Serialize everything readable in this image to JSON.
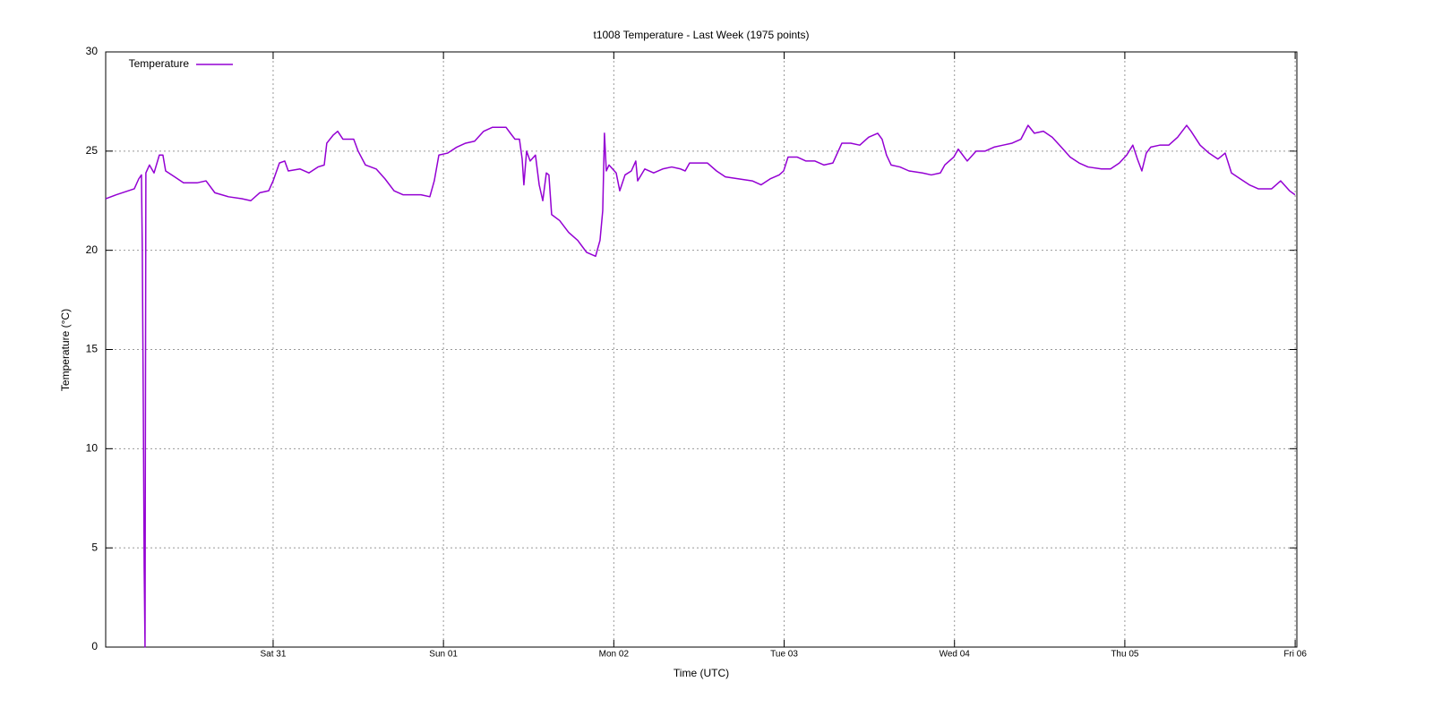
{
  "chart_data": {
    "type": "line",
    "title": "t1008 Temperature - Last Week (1975 points)",
    "xlabel": "Time (UTC)",
    "ylabel": "Temperature (°C)",
    "legend": "top-left",
    "grid": true,
    "xlim": [
      -0.983,
      6.01
    ],
    "ylim": [
      0,
      30
    ],
    "xticks": [
      {
        "value": 0,
        "label": "Sat 31"
      },
      {
        "value": 1,
        "label": "Sun 01"
      },
      {
        "value": 2,
        "label": "Mon 02"
      },
      {
        "value": 3,
        "label": "Tue 03"
      },
      {
        "value": 4,
        "label": "Wed 04"
      },
      {
        "value": 5,
        "label": "Thu 05"
      },
      {
        "value": 6,
        "label": "Fri 06"
      }
    ],
    "yticks": [
      0,
      5,
      10,
      15,
      20,
      25,
      30
    ],
    "x": [
      -0.983,
      -0.92,
      -0.815,
      -0.789,
      -0.773,
      -0.768,
      -0.762,
      -0.757,
      -0.752,
      -0.747,
      -0.726,
      -0.699,
      -0.668,
      -0.647,
      -0.631,
      -0.578,
      -0.526,
      -0.447,
      -0.394,
      -0.342,
      -0.263,
      -0.184,
      -0.131,
      -0.079,
      -0.026,
      0,
      0.037,
      0.068,
      0.089,
      0.158,
      0.21,
      0.263,
      0.3,
      0.315,
      0.352,
      0.379,
      0.41,
      0.473,
      0.499,
      0.542,
      0.605,
      0.657,
      0.71,
      0.762,
      0.868,
      0.92,
      0.946,
      0.973,
      1.025,
      1.078,
      1.13,
      1.183,
      1.236,
      1.288,
      1.367,
      1.393,
      1.42,
      1.446,
      1.462,
      1.472,
      1.488,
      1.509,
      1.54,
      1.562,
      1.583,
      1.604,
      1.619,
      1.635,
      1.682,
      1.735,
      1.788,
      1.84,
      1.893,
      1.919,
      1.935,
      1.945,
      1.956,
      1.972,
      2.014,
      2.035,
      2.066,
      2.103,
      2.129,
      2.14,
      2.182,
      2.234,
      2.287,
      2.34,
      2.392,
      2.419,
      2.445,
      2.497,
      2.55,
      2.603,
      2.655,
      2.734,
      2.813,
      2.865,
      2.918,
      2.971,
      2.997,
      3.023,
      3.076,
      3.128,
      3.181,
      3.233,
      3.286,
      3.339,
      3.391,
      3.444,
      3.496,
      3.549,
      3.575,
      3.601,
      3.628,
      3.68,
      3.733,
      3.812,
      3.864,
      3.917,
      3.943,
      3.996,
      4.022,
      4.075,
      4.127,
      4.18,
      4.232,
      4.285,
      4.338,
      4.39,
      4.432,
      4.469,
      4.522,
      4.574,
      4.627,
      4.679,
      4.732,
      4.784,
      4.863,
      4.916,
      4.968,
      5.011,
      5.047,
      5.074,
      5.1,
      5.126,
      5.152,
      5.205,
      5.258,
      5.31,
      5.363,
      5.389,
      5.442,
      5.494,
      5.547,
      5.589,
      5.626,
      5.678,
      5.731,
      5.783,
      5.862,
      5.915,
      5.967,
      5.999
    ],
    "series": [
      {
        "name": "Temperature",
        "color": "#9400d3",
        "values": [
          22.6,
          22.8,
          23.1,
          23.6,
          23.8,
          20,
          12,
          4,
          0,
          23.9,
          24.3,
          23.9,
          24.8,
          24.8,
          24.0,
          23.7,
          23.4,
          23.4,
          23.5,
          22.9,
          22.7,
          22.6,
          22.5,
          22.9,
          23.0,
          23.5,
          24.4,
          24.5,
          24.0,
          24.1,
          23.9,
          24.2,
          24.3,
          25.4,
          25.8,
          26.0,
          25.6,
          25.6,
          25.0,
          24.3,
          24.1,
          23.6,
          23.0,
          22.8,
          22.8,
          22.7,
          23.5,
          24.8,
          24.9,
          25.2,
          25.4,
          25.5,
          26.0,
          26.2,
          26.2,
          25.9,
          25.6,
          25.6,
          24.6,
          23.3,
          25.0,
          24.5,
          24.8,
          23.3,
          22.5,
          23.9,
          23.8,
          21.8,
          21.5,
          20.9,
          20.5,
          19.9,
          19.7,
          20.5,
          22.0,
          25.9,
          24.0,
          24.3,
          23.9,
          23.0,
          23.8,
          24.0,
          24.5,
          23.5,
          24.1,
          23.9,
          24.1,
          24.2,
          24.1,
          24.0,
          24.4,
          24.4,
          24.4,
          24.0,
          23.7,
          23.6,
          23.5,
          23.3,
          23.6,
          23.8,
          24.0,
          24.7,
          24.7,
          24.5,
          24.5,
          24.3,
          24.4,
          25.4,
          25.4,
          25.3,
          25.7,
          25.9,
          25.6,
          24.8,
          24.3,
          24.2,
          24.0,
          23.9,
          23.8,
          23.9,
          24.3,
          24.7,
          25.1,
          24.5,
          25.0,
          25.0,
          25.2,
          25.3,
          25.4,
          25.6,
          26.3,
          25.9,
          26.0,
          25.7,
          25.2,
          24.7,
          24.4,
          24.2,
          24.1,
          24.1,
          24.4,
          24.8,
          25.3,
          24.6,
          24.0,
          24.9,
          25.2,
          25.3,
          25.3,
          25.7,
          26.3,
          26.0,
          25.3,
          24.9,
          24.6,
          24.9,
          23.9,
          23.6,
          23.3,
          23.1,
          23.1,
          23.5,
          23.0,
          22.8
        ]
      }
    ]
  }
}
